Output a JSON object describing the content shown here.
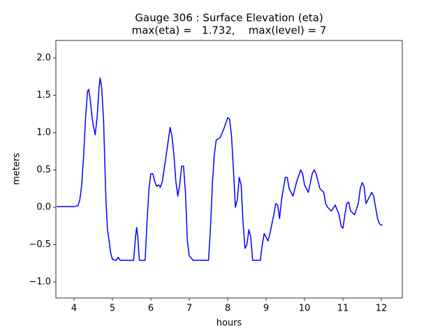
{
  "chart_data": {
    "type": "line",
    "title": "Gauge 306 : Surface Elevation (eta)",
    "subtitle": "max(eta) =   1.732,    max(level) = 7",
    "x_label": "hours",
    "y_label": "meters",
    "xlim": [
      3.527,
      12.545
    ],
    "ylim": [
      -1.215,
      2.234
    ],
    "xticks": [
      4,
      5,
      6,
      7,
      8,
      9,
      10,
      11,
      12
    ],
    "yticks": [
      {
        "value": -1,
        "label": "−1.0"
      },
      {
        "value": -0.5,
        "label": "−0.5"
      },
      {
        "value": 0,
        "label": "0.0"
      },
      {
        "value": 0.5,
        "label": "0.5"
      },
      {
        "value": 1,
        "label": "1.0"
      },
      {
        "value": 1.5,
        "label": "1.5"
      },
      {
        "value": 2,
        "label": "2.0"
      }
    ],
    "x": [
      3.55,
      3.8,
      4.0,
      4.1,
      4.15,
      4.2,
      4.25,
      4.3,
      4.35,
      4.38,
      4.42,
      4.47,
      4.5,
      4.55,
      4.6,
      4.65,
      4.68,
      4.72,
      4.77,
      4.8,
      4.83,
      4.87,
      4.9,
      4.95,
      5.0,
      5.1,
      5.15,
      5.2,
      5.55,
      5.6,
      5.63,
      5.66,
      5.7,
      5.85,
      5.9,
      5.95,
      6.0,
      6.05,
      6.1,
      6.15,
      6.2,
      6.25,
      6.3,
      6.4,
      6.5,
      6.55,
      6.6,
      6.65,
      6.7,
      6.75,
      6.8,
      6.85,
      6.9,
      6.95,
      7.0,
      7.1,
      7.5,
      7.55,
      7.6,
      7.65,
      7.7,
      7.8,
      7.9,
      8.0,
      8.05,
      8.1,
      8.15,
      8.2,
      8.25,
      8.3,
      8.35,
      8.4,
      8.45,
      8.5,
      8.55,
      8.6,
      8.65,
      8.85,
      8.9,
      8.95,
      9.0,
      9.05,
      9.1,
      9.2,
      9.25,
      9.3,
      9.35,
      9.4,
      9.5,
      9.55,
      9.6,
      9.7,
      9.8,
      9.9,
      9.95,
      10.0,
      10.1,
      10.2,
      10.25,
      10.3,
      10.4,
      10.5,
      10.55,
      10.6,
      10.7,
      10.8,
      10.9,
      10.95,
      11.0,
      11.05,
      11.1,
      11.15,
      11.2,
      11.3,
      11.4,
      11.45,
      11.5,
      11.55,
      11.6,
      11.65,
      11.75,
      11.8,
      11.9,
      11.95,
      12.0,
      12.02
    ],
    "series": [
      {
        "color": "#0000ff",
        "values": [
          0.01,
          0.01,
          0.01,
          0.02,
          0.1,
          0.3,
          0.7,
          1.2,
          1.55,
          1.58,
          1.45,
          1.2,
          1.1,
          0.97,
          1.2,
          1.6,
          1.73,
          1.6,
          1.15,
          0.6,
          0.1,
          -0.3,
          -0.4,
          -0.6,
          -0.7,
          -0.71,
          -0.67,
          -0.71,
          -0.71,
          -0.4,
          -0.27,
          -0.4,
          -0.71,
          -0.71,
          -0.2,
          0.25,
          0.45,
          0.45,
          0.35,
          0.28,
          0.3,
          0.27,
          0.35,
          0.7,
          1.07,
          0.95,
          0.7,
          0.35,
          0.15,
          0.3,
          0.55,
          0.55,
          0.2,
          -0.45,
          -0.65,
          -0.71,
          -0.71,
          -0.3,
          0.3,
          0.7,
          0.9,
          0.93,
          1.05,
          1.2,
          1.18,
          0.95,
          0.5,
          0.0,
          0.1,
          0.4,
          0.3,
          -0.2,
          -0.55,
          -0.5,
          -0.3,
          -0.4,
          -0.71,
          -0.71,
          -0.5,
          -0.35,
          -0.4,
          -0.45,
          -0.35,
          -0.1,
          0.05,
          0.03,
          -0.15,
          0.1,
          0.4,
          0.4,
          0.25,
          0.15,
          0.35,
          0.5,
          0.45,
          0.3,
          0.2,
          0.45,
          0.5,
          0.45,
          0.25,
          0.2,
          0.05,
          0.0,
          -0.05,
          0.03,
          -0.1,
          -0.25,
          -0.28,
          -0.1,
          0.05,
          0.07,
          -0.05,
          -0.1,
          0.05,
          0.25,
          0.33,
          0.28,
          0.05,
          0.1,
          0.2,
          0.15,
          -0.15,
          -0.22,
          -0.24,
          -0.23
        ]
      }
    ]
  }
}
